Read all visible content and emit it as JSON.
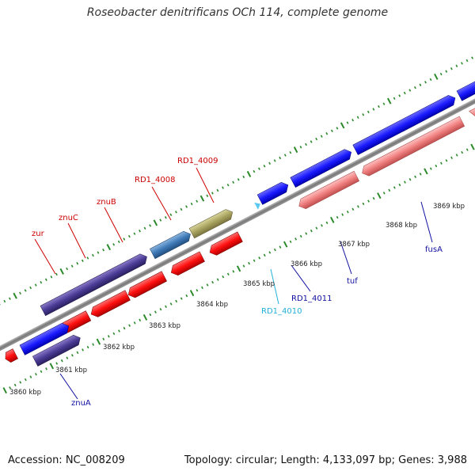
{
  "header": {
    "title": "Roseobacter denitrificans OCh 114, complete genome"
  },
  "footer": {
    "accession": "Accession: NC_008209",
    "topology": "Topology: circular; Length: 4,133,097 bp; Genes: 3,988"
  },
  "colors": {
    "backbone": "#888888",
    "tick": "#2a8a2a",
    "label_red": "#cc0000",
    "label_blue": "#1010a0",
    "label_cyan": "#22b0d8"
  },
  "ticks": [
    "3860 kbp",
    "3861 kbp",
    "3862 kbp",
    "3863 kbp",
    "3864 kbp",
    "3865 kbp",
    "3866 kbp",
    "3867 kbp",
    "3868 kbp",
    "3869 kbp"
  ],
  "genes": {
    "zur": "zur",
    "znuC": "znuC",
    "znuB": "znuB",
    "rd1_4008": "RD1_4008",
    "rd1_4009": "RD1_4009",
    "znuA": "znuA",
    "rd1_4010": "RD1_4010",
    "rd1_4011": "RD1_4011",
    "tuf": "tuf",
    "fusA": "fusA"
  }
}
